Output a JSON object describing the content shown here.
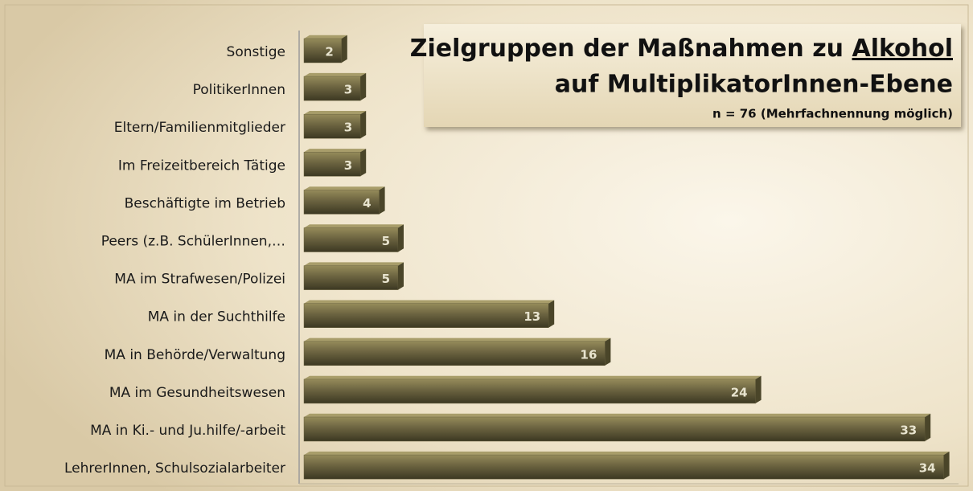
{
  "chart_data": {
    "type": "hbar",
    "title": {
      "line1": "Zielgruppen der Maßnahmen zu",
      "emphasis": "Alkohol",
      "line2": "auf MultiplikatorInnen-Ebene"
    },
    "subtitle": "n = 76  (Mehrfachnennung möglich)",
    "categories": [
      "Sonstige",
      "PolitikerInnen",
      "Eltern/Familienmitglieder",
      "Im Freizeitbereich Tätige",
      "Beschäftigte im Betrieb",
      "Peers (z.B. SchülerInnen,…",
      "MA im Strafwesen/Polizei",
      "MA in der Suchthilfe",
      "MA in Behörde/Verwaltung",
      "MA im Gesundheitswesen",
      "MA in Ki.- und Ju.hilfe/-arbeit",
      "LehrerInnen,  Schulsozialarbeiter"
    ],
    "values": [
      2,
      3,
      3,
      3,
      4,
      5,
      5,
      13,
      16,
      24,
      33,
      34
    ],
    "color": "#6b6340",
    "xlim": [
      0,
      35
    ]
  }
}
